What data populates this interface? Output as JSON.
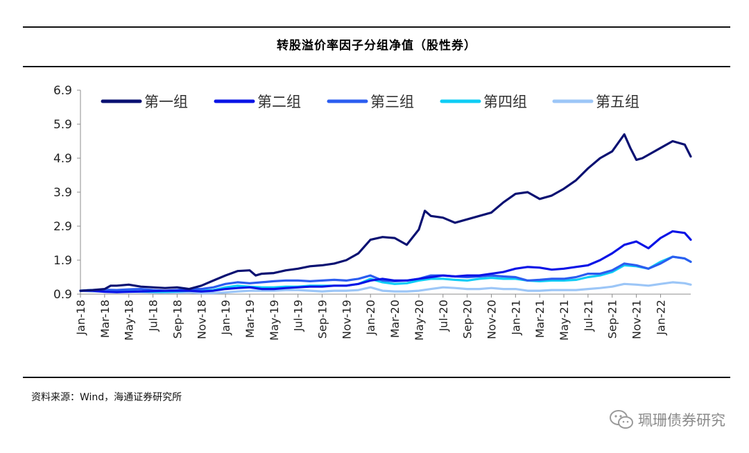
{
  "header": {
    "title": "转股溢价率因子分组净值（股性券）"
  },
  "footer": {
    "source": "资料来源：Wind，海通证券研究所"
  },
  "watermark": {
    "text": "珮珊债券研究"
  },
  "chart_data": {
    "type": "line",
    "title": "转股溢价率因子分组净值（股性券）",
    "xlabel": "",
    "ylabel": "",
    "ylim": [
      0.9,
      6.9
    ],
    "yticks": [
      0.9,
      1.9,
      2.9,
      3.9,
      4.9,
      5.9,
      6.9
    ],
    "x_tick_labels": [
      "Jan-18",
      "Mar-18",
      "May-18",
      "Jul-18",
      "Sep-18",
      "Nov-18",
      "Jan-19",
      "Mar-19",
      "May-19",
      "Jul-19",
      "Sep-19",
      "Nov-19",
      "Jan-20",
      "Mar-20",
      "May-20",
      "Jul-20",
      "Sep-20",
      "Nov-20",
      "Jan-21",
      "Mar-21",
      "May-21",
      "Jul-21",
      "Sep-21",
      "Nov-21",
      "Jan-22"
    ],
    "x_range_months": [
      0,
      50.5
    ],
    "legend_position": "top",
    "series": [
      {
        "name": "第一组",
        "color": "#0a1172",
        "x": [
          0,
          1,
          2,
          2.5,
          3,
          4,
          5,
          6,
          7,
          8,
          9,
          10,
          11,
          12,
          13,
          14,
          14.5,
          15,
          16,
          17,
          18,
          19,
          20,
          21,
          22,
          23,
          24,
          25,
          26,
          27,
          28,
          28.5,
          29,
          30,
          31,
          32,
          33,
          34,
          35,
          36,
          37,
          38,
          39,
          40,
          41,
          42,
          43,
          44,
          45,
          45.5,
          46,
          46.5,
          47,
          48,
          49,
          50,
          50.5
        ],
        "values": [
          1.0,
          1.02,
          1.05,
          1.15,
          1.15,
          1.18,
          1.12,
          1.1,
          1.08,
          1.1,
          1.05,
          1.15,
          1.3,
          1.45,
          1.58,
          1.6,
          1.45,
          1.5,
          1.52,
          1.6,
          1.65,
          1.72,
          1.75,
          1.8,
          1.9,
          2.1,
          2.5,
          2.58,
          2.55,
          2.35,
          2.8,
          3.35,
          3.2,
          3.15,
          3.0,
          3.1,
          3.2,
          3.3,
          3.6,
          3.85,
          3.9,
          3.7,
          3.8,
          4.0,
          4.25,
          4.6,
          4.9,
          5.1,
          5.6,
          5.2,
          4.85,
          4.9,
          5.0,
          5.2,
          5.4,
          5.3,
          4.95
        ]
      },
      {
        "name": "第二组",
        "color": "#0a14e6",
        "x": [
          0,
          1,
          2,
          3,
          4,
          5,
          6,
          7,
          8,
          9,
          10,
          11,
          12,
          13,
          14,
          15,
          16,
          17,
          18,
          19,
          20,
          21,
          22,
          23,
          24,
          25,
          26,
          27,
          28,
          29,
          30,
          31,
          32,
          33,
          34,
          35,
          36,
          37,
          38,
          39,
          40,
          41,
          42,
          43,
          44,
          45,
          46,
          47,
          48,
          49,
          50,
          50.5
        ],
        "values": [
          1.0,
          1.0,
          0.97,
          0.96,
          0.97,
          0.98,
          0.99,
          1.0,
          1.0,
          1.0,
          0.98,
          1.0,
          1.05,
          1.08,
          1.1,
          1.05,
          1.05,
          1.08,
          1.1,
          1.12,
          1.12,
          1.15,
          1.15,
          1.2,
          1.3,
          1.35,
          1.3,
          1.3,
          1.35,
          1.4,
          1.45,
          1.42,
          1.45,
          1.45,
          1.5,
          1.55,
          1.65,
          1.7,
          1.68,
          1.62,
          1.65,
          1.7,
          1.75,
          1.9,
          2.1,
          2.35,
          2.45,
          2.25,
          2.55,
          2.75,
          2.7,
          2.5
        ]
      },
      {
        "name": "第三组",
        "color": "#2b5df0",
        "x": [
          0,
          1,
          2,
          3,
          4,
          5,
          6,
          7,
          8,
          9,
          10,
          11,
          12,
          13,
          14,
          15,
          16,
          17,
          18,
          19,
          20,
          21,
          22,
          23,
          24,
          25,
          26,
          27,
          28,
          29,
          30,
          31,
          32,
          33,
          34,
          35,
          36,
          37,
          38,
          39,
          40,
          41,
          42,
          43,
          44,
          45,
          46,
          47,
          48,
          49,
          50,
          50.5
        ],
        "values": [
          1.0,
          1.02,
          1.03,
          1.02,
          1.04,
          1.05,
          1.02,
          1.0,
          1.02,
          1.05,
          1.05,
          1.1,
          1.2,
          1.25,
          1.22,
          1.25,
          1.28,
          1.3,
          1.3,
          1.28,
          1.3,
          1.32,
          1.3,
          1.35,
          1.45,
          1.3,
          1.28,
          1.3,
          1.35,
          1.45,
          1.45,
          1.42,
          1.4,
          1.42,
          1.45,
          1.42,
          1.4,
          1.3,
          1.32,
          1.35,
          1.35,
          1.4,
          1.5,
          1.5,
          1.6,
          1.8,
          1.75,
          1.65,
          1.8,
          2.0,
          1.95,
          1.85
        ]
      },
      {
        "name": "第四组",
        "color": "#0ecdf5",
        "x": [
          0,
          1,
          2,
          3,
          4,
          5,
          6,
          7,
          8,
          9,
          10,
          11,
          12,
          13,
          14,
          15,
          16,
          17,
          18,
          19,
          20,
          21,
          22,
          23,
          24,
          25,
          26,
          27,
          28,
          29,
          30,
          31,
          32,
          33,
          34,
          35,
          36,
          37,
          38,
          39,
          40,
          41,
          42,
          43,
          44,
          45,
          46,
          47,
          48,
          49,
          50,
          50.5
        ],
        "values": [
          1.0,
          1.02,
          1.0,
          0.98,
          0.98,
          0.98,
          0.97,
          0.97,
          0.98,
          1.0,
          1.0,
          1.02,
          1.1,
          1.15,
          1.12,
          1.1,
          1.1,
          1.12,
          1.12,
          1.15,
          1.15,
          1.15,
          1.15,
          1.2,
          1.35,
          1.25,
          1.2,
          1.22,
          1.3,
          1.35,
          1.35,
          1.32,
          1.3,
          1.35,
          1.38,
          1.35,
          1.35,
          1.3,
          1.28,
          1.3,
          1.3,
          1.32,
          1.4,
          1.45,
          1.55,
          1.75,
          1.72,
          1.65,
          1.85,
          2.0,
          1.95,
          1.85
        ]
      },
      {
        "name": "第五组",
        "color": "#9cc6f7",
        "x": [
          0,
          1,
          2,
          3,
          4,
          5,
          6,
          7,
          8,
          9,
          10,
          11,
          12,
          13,
          14,
          15,
          16,
          17,
          18,
          19,
          20,
          21,
          22,
          23,
          24,
          25,
          26,
          27,
          28,
          29,
          30,
          31,
          32,
          33,
          34,
          35,
          36,
          37,
          38,
          39,
          40,
          41,
          42,
          43,
          44,
          45,
          46,
          47,
          48,
          49,
          50,
          50.5
        ],
        "values": [
          1.0,
          0.98,
          0.98,
          0.96,
          0.97,
          0.96,
          0.95,
          0.94,
          0.95,
          0.95,
          0.93,
          0.93,
          0.95,
          0.98,
          1.0,
          1.0,
          1.0,
          1.02,
          1.02,
          1.0,
          0.98,
          1.0,
          1.0,
          1.02,
          1.1,
          1.0,
          0.98,
          0.98,
          1.0,
          1.05,
          1.1,
          1.08,
          1.05,
          1.05,
          1.08,
          1.05,
          1.05,
          1.0,
          1.0,
          1.02,
          1.02,
          1.02,
          1.05,
          1.08,
          1.12,
          1.2,
          1.18,
          1.15,
          1.2,
          1.25,
          1.22,
          1.18
        ]
      }
    ]
  }
}
